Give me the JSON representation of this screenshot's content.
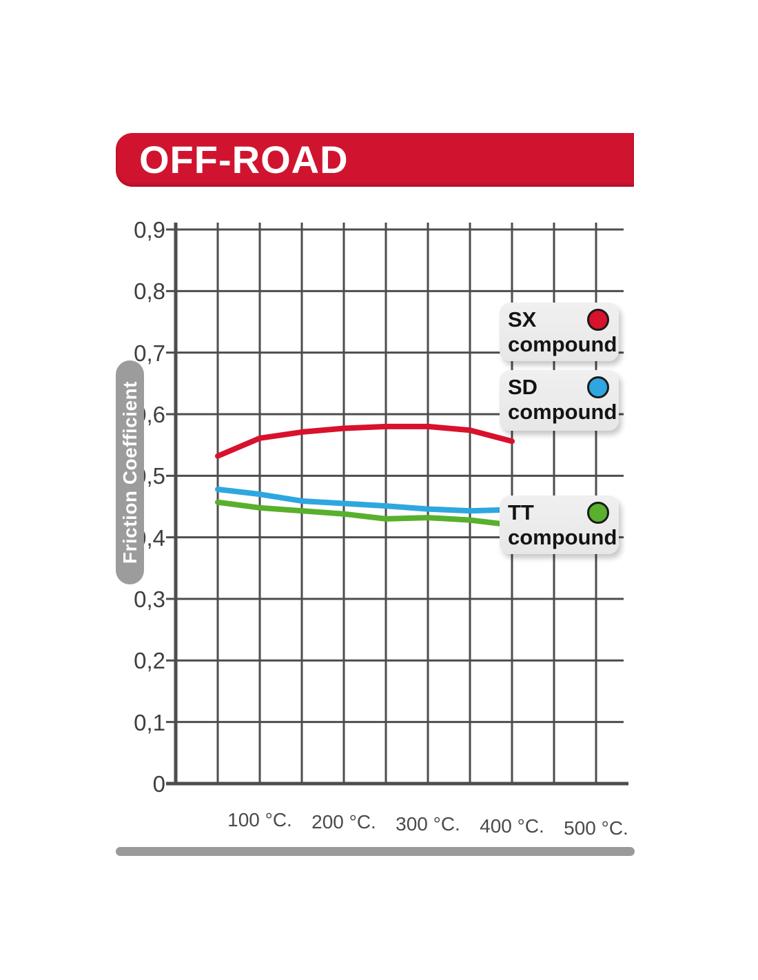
{
  "banner": {
    "title": "OFF-ROAD",
    "bg_color": "#d0142f"
  },
  "colors": {
    "grid": "#4d4d4d",
    "tick_text": "#3f3f3f",
    "side_bar_gray": "#9c9c9c",
    "legend_bg": "#e9e9e9"
  },
  "y_axis_bar": {
    "label": "Friction Coefficient"
  },
  "chart_data": {
    "type": "line",
    "title": "",
    "xlabel": "",
    "ylabel": "Friction Coefficient",
    "x": [
      50,
      100,
      150,
      200,
      250,
      300,
      350,
      400
    ],
    "series": [
      {
        "name": "SX compound",
        "color": "#d8112c",
        "values": [
          0.532,
          0.561,
          0.571,
          0.577,
          0.58,
          0.58,
          0.574,
          0.556
        ]
      },
      {
        "name": "SD compound",
        "color": "#2ea7e0",
        "values": [
          0.478,
          0.47,
          0.459,
          0.455,
          0.451,
          0.446,
          0.443,
          0.445
        ]
      },
      {
        "name": "TT compound",
        "color": "#58b02c",
        "values": [
          0.457,
          0.448,
          0.443,
          0.438,
          0.43,
          0.432,
          0.428,
          0.42
        ]
      }
    ],
    "legend": [
      {
        "code": "SX",
        "word": "compound",
        "color": "#d8112c"
      },
      {
        "code": "SD",
        "word": "compound",
        "color": "#2ea7e0"
      },
      {
        "code": "TT",
        "word": "compound",
        "color": "#58b02c"
      }
    ],
    "ylim": [
      0,
      0.9
    ],
    "xlim": [
      0,
      500
    ],
    "grid": true,
    "x_grid_step_c": 50,
    "y_grid_step": 0.1,
    "legend_position": "inside-right",
    "y_ticks": [
      {
        "label": "0,9",
        "value": 0.9
      },
      {
        "label": "0,8",
        "value": 0.8
      },
      {
        "label": "0,7",
        "value": 0.7
      },
      {
        "label": "0,6",
        "value": 0.6
      },
      {
        "label": "0,5",
        "value": 0.5
      },
      {
        "label": "0,4",
        "value": 0.4
      },
      {
        "label": "0,3",
        "value": 0.3
      },
      {
        "label": "0,2",
        "value": 0.2
      },
      {
        "label": "0,1",
        "value": 0.1
      },
      {
        "label": "0",
        "value": 0
      }
    ],
    "x_ticks": [
      {
        "label": "100 °C.",
        "value": 100
      },
      {
        "label": "200 °C.",
        "value": 200
      },
      {
        "label": "300 °C.",
        "value": 300
      },
      {
        "label": "400 °C.",
        "value": 400
      },
      {
        "label": "500 °C.",
        "value": 500
      }
    ]
  }
}
